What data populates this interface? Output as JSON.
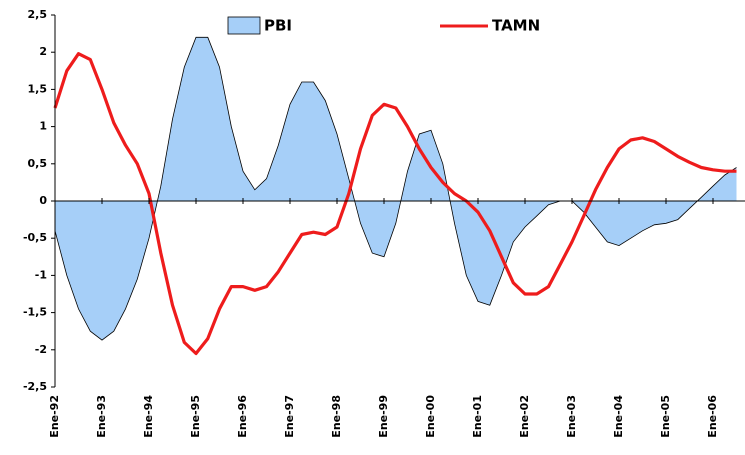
{
  "chart_data": {
    "type": "area-line",
    "categories": [
      "Ene-92",
      null,
      null,
      null,
      "Ene-93",
      null,
      null,
      null,
      "Ene-94",
      null,
      null,
      null,
      "Ene-95",
      null,
      null,
      null,
      "Ene-96",
      null,
      null,
      null,
      "Ene-97",
      null,
      null,
      null,
      "Ene-98",
      null,
      null,
      null,
      "Ene-99",
      null,
      null,
      null,
      "Ene-00",
      null,
      null,
      null,
      "Ene-01",
      null,
      null,
      null,
      "Ene-02",
      null,
      null,
      null,
      "Ene-03",
      null,
      null,
      null,
      "Ene-04",
      null,
      null,
      null,
      "Ene-05",
      null,
      null,
      null,
      "Ene-06",
      null,
      null
    ],
    "series": [
      {
        "name": "PBI",
        "kind": "area",
        "color": "#a6cff8",
        "values": [
          -0.4,
          -1.0,
          -1.45,
          -1.75,
          -1.87,
          -1.75,
          -1.45,
          -1.05,
          -0.5,
          0.2,
          1.1,
          1.8,
          2.2,
          2.2,
          1.8,
          1.0,
          0.4,
          0.15,
          0.3,
          0.75,
          1.3,
          1.6,
          1.6,
          1.35,
          0.9,
          0.3,
          -0.3,
          -0.7,
          -0.75,
          -0.3,
          0.4,
          0.9,
          0.95,
          0.5,
          -0.3,
          -1.0,
          -1.35,
          -1.4,
          -1.0,
          -0.55,
          -0.35,
          -0.2,
          -0.05,
          0.0,
          0.0,
          -0.15,
          -0.35,
          -0.55,
          -0.6,
          -0.5,
          -0.4,
          -0.32,
          -0.3,
          -0.25,
          -0.1,
          0.05,
          0.2,
          0.35,
          0.45
        ]
      },
      {
        "name": "TAMN",
        "kind": "line",
        "color": "#ee1c1c",
        "values": [
          1.25,
          1.75,
          1.98,
          1.9,
          1.5,
          1.05,
          0.75,
          0.5,
          0.1,
          -0.7,
          -1.4,
          -1.9,
          -2.05,
          -1.85,
          -1.45,
          -1.15,
          -1.15,
          -1.2,
          -1.15,
          -0.95,
          -0.7,
          -0.45,
          -0.42,
          -0.45,
          -0.35,
          0.1,
          0.7,
          1.15,
          1.3,
          1.25,
          1.0,
          0.7,
          0.45,
          0.25,
          0.1,
          0.0,
          -0.15,
          -0.4,
          -0.75,
          -1.1,
          -1.25,
          -1.25,
          -1.15,
          -0.85,
          -0.55,
          -0.2,
          0.15,
          0.45,
          0.7,
          0.82,
          0.85,
          0.8,
          0.7,
          0.6,
          0.52,
          0.45,
          0.42,
          0.4,
          0.4
        ]
      }
    ],
    "ylim": [
      -2.5,
      2.5
    ],
    "yticks": [
      {
        "value": -2.5,
        "label": "-2,5"
      },
      -2,
      {
        "value": -1.5,
        "label": "-1,5"
      },
      -1,
      {
        "value": -0.5,
        "label": "-0,5"
      },
      0,
      {
        "value": 0.5,
        "label": "0,5"
      },
      1,
      {
        "value": 1.5,
        "label": "1,5"
      },
      2,
      {
        "value": 2.5,
        "label": "2,5"
      }
    ],
    "grid": false
  }
}
